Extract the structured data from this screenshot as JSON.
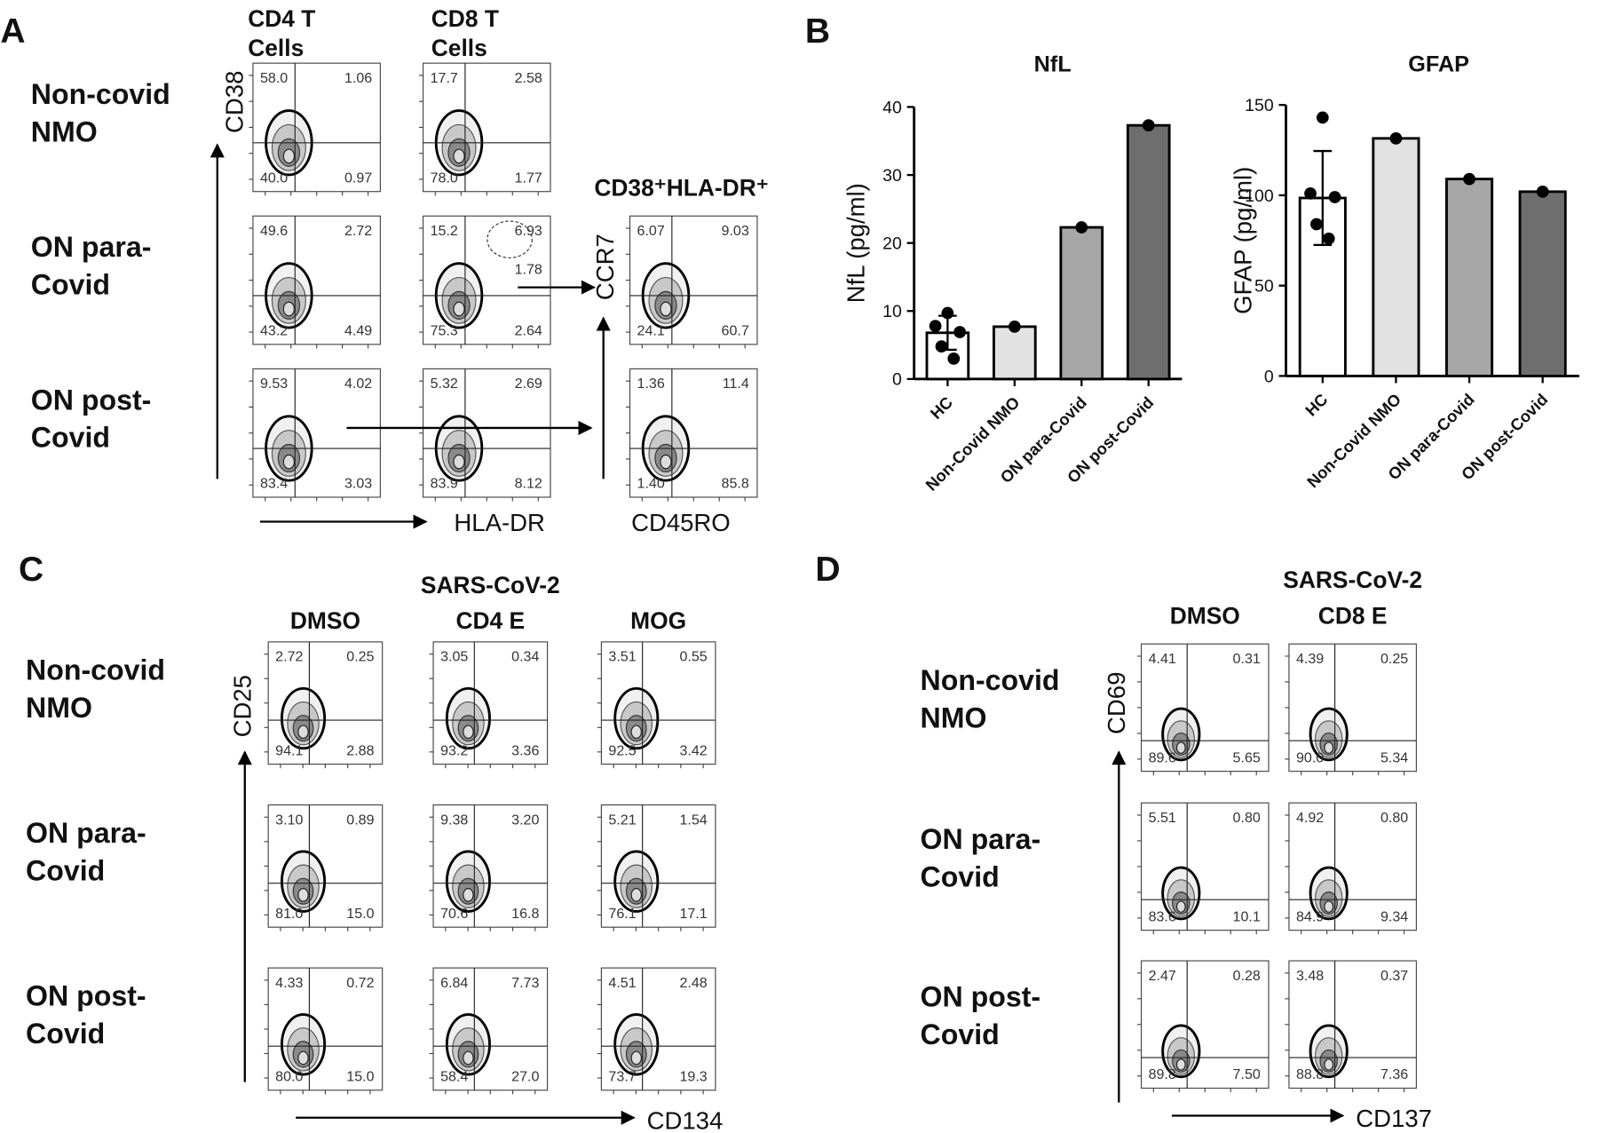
{
  "chart_data": [
    {
      "type": "bar",
      "title": "NfL",
      "y_label": "NfL (pg/ml)",
      "categories": [
        "HC",
        "Non-Covid NMO",
        "ON para-Covid",
        "ON post-Covid"
      ],
      "series": [
        {
          "values": [
            6.8,
            7.7,
            22.3,
            37.3
          ],
          "errors": [
            2.5,
            null,
            null,
            null
          ],
          "points": [
            [
              9.7,
              7.8,
              6.9,
              4.8,
              3.0
            ],
            [
              7.7
            ],
            [
              22.3
            ],
            [
              37.3
            ]
          ]
        }
      ],
      "colors": [
        "#ffffff",
        "#e2e2e2",
        "#a6a6a6",
        "#6e6e6e"
      ],
      "ylim": [
        0,
        40
      ],
      "yticks": [
        0,
        10,
        20,
        30,
        40
      ]
    },
    {
      "type": "bar",
      "title": "GFAP",
      "y_label": "GFAP (pg/ml)",
      "categories": [
        "HC",
        "Non-Covid NMO",
        "ON para-Covid",
        "ON post-Covid"
      ],
      "series": [
        {
          "values": [
            98.5,
            131.5,
            109,
            102
          ],
          "errors": [
            26,
            null,
            null,
            null
          ],
          "points": [
            [
              143,
              101,
              99,
              84,
              76
            ],
            [
              131.5
            ],
            [
              109
            ],
            [
              102
            ]
          ]
        }
      ],
      "colors": [
        "#ffffff",
        "#e2e2e2",
        "#a6a6a6",
        "#6e6e6e"
      ],
      "ylim": [
        0,
        150
      ],
      "yticks": [
        0,
        50,
        100,
        150
      ]
    }
  ],
  "panel_b": {
    "label": "B"
  },
  "panel_a": {
    "label": "A",
    "row_labels": [
      [
        "Non-covid",
        "NMO"
      ],
      [
        "ON para-",
        "Covid"
      ],
      [
        "ON post-",
        "Covid"
      ]
    ],
    "axis_labels": {
      "y": "CD38",
      "x": "HLA-DR",
      "y_gate": "CCR7",
      "x_gate": "CD45RO"
    },
    "gate_label": "1.78",
    "columns": [
      {
        "title_lines": [
          "CD4 T",
          "Cells"
        ],
        "plots": [
          [
            "58.0",
            "1.06",
            "40.0",
            "0.97"
          ],
          [
            "49.6",
            "2.72",
            "43.2",
            "4.49"
          ],
          [
            "9.53",
            "4.02",
            "83.4",
            "3.03"
          ]
        ]
      },
      {
        "title_lines": [
          "CD8 T",
          "Cells"
        ],
        "plots": [
          [
            "17.7",
            "2.58",
            "78.0",
            "1.77"
          ],
          [
            "15.2",
            "6.93",
            "75.3",
            "2.64"
          ],
          [
            "5.32",
            "2.69",
            "83.9",
            "8.12"
          ]
        ]
      },
      {
        "title_lines": [
          "CD38⁺HLA-DR⁺"
        ],
        "plots": [
          [
            "6.07",
            "9.03",
            "24.1",
            "60.7"
          ],
          [
            "1.36",
            "11.4",
            "1.40",
            "85.8"
          ]
        ]
      }
    ]
  },
  "panel_c": {
    "label": "C",
    "row_labels": [
      [
        "Non-covid",
        "NMO"
      ],
      [
        "ON para-",
        "Covid"
      ],
      [
        "ON post-",
        "Covid"
      ]
    ],
    "axis_labels": {
      "y": "CD25",
      "x": "CD134"
    },
    "columns": [
      {
        "title_lines": [
          "DMSO"
        ],
        "plots": [
          [
            "2.72",
            "0.25",
            "94.1",
            "2.88"
          ],
          [
            "3.10",
            "0.89",
            "81.0",
            "15.0"
          ],
          [
            "4.33",
            "0.72",
            "80.0",
            "15.0"
          ]
        ]
      },
      {
        "title_lines": [
          "SARS-CoV-2",
          "CD4 E"
        ],
        "plots": [
          [
            "3.05",
            "0.34",
            "93.2",
            "3.36"
          ],
          [
            "9.38",
            "3.20",
            "70.6",
            "16.8"
          ],
          [
            "6.84",
            "7.73",
            "58.4",
            "27.0"
          ]
        ]
      },
      {
        "title_lines": [
          "MOG"
        ],
        "plots": [
          [
            "3.51",
            "0.55",
            "92.5",
            "3.42"
          ],
          [
            "5.21",
            "1.54",
            "76.1",
            "17.1"
          ],
          [
            "4.51",
            "2.48",
            "73.7",
            "19.3"
          ]
        ]
      }
    ]
  },
  "panel_d": {
    "label": "D",
    "row_labels": [
      [
        "Non-covid",
        "NMO"
      ],
      [
        "ON para-",
        "Covid"
      ],
      [
        "ON post-",
        "Covid"
      ]
    ],
    "axis_labels": {
      "y": "CD69",
      "x": "CD137"
    },
    "columns": [
      {
        "title_lines": [
          "DMSO"
        ],
        "plots": [
          [
            "4.41",
            "0.31",
            "89.6",
            "5.65"
          ],
          [
            "5.51",
            "0.80",
            "83.6",
            "10.1"
          ],
          [
            "2.47",
            "0.28",
            "89.8",
            "7.50"
          ]
        ]
      },
      {
        "title_lines": [
          "SARS-CoV-2",
          "CD8 E"
        ],
        "plots": [
          [
            "4.39",
            "0.25",
            "90.0",
            "5.34"
          ],
          [
            "4.92",
            "0.80",
            "84.9",
            "9.34"
          ],
          [
            "3.48",
            "0.37",
            "88.8",
            "7.36"
          ]
        ]
      }
    ]
  }
}
